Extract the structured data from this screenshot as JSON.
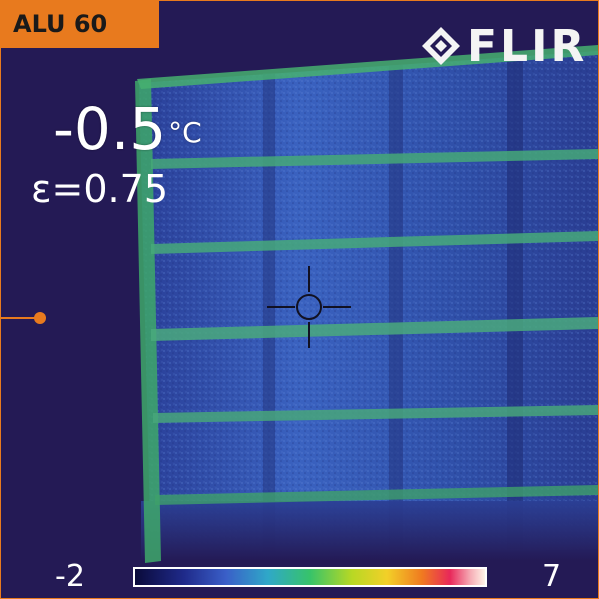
{
  "header": {
    "tag_label": "ALU 60",
    "tag_color": "#e87a1e"
  },
  "logo": {
    "icon": "flir-diamond-logo-icon",
    "text": "FLIR"
  },
  "readout": {
    "temperature_value": "-0.5",
    "temperature_unit": "°C",
    "emissivity": "ε=0.75"
  },
  "crosshair": {
    "icon": "crosshair-target-icon"
  },
  "scale": {
    "min": "-2",
    "max": "7"
  },
  "colors": {
    "background": "#241a55",
    "panel_blue": "#3a5fb8",
    "rail_green": "#3ea86a",
    "accent": "#e87a1e"
  }
}
